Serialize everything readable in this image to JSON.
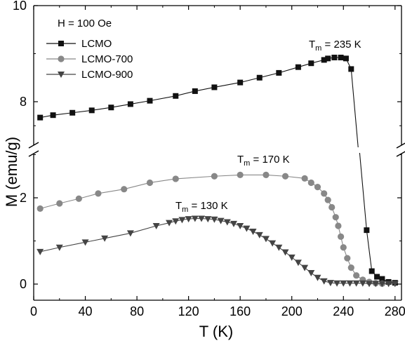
{
  "chart_data": {
    "type": "scatter",
    "xlabel": "T (K)",
    "ylabel": "M (emu/g)",
    "xlim": [
      0,
      285
    ],
    "xticks": [
      "0",
      "40",
      "80",
      "120",
      "160",
      "200",
      "240",
      "280"
    ],
    "yticks_lower": [
      "0",
      "2"
    ],
    "yticks_upper": [
      "8",
      "10"
    ],
    "ylim_lower": [
      -0.2,
      3.2
    ],
    "ylim_upper": [
      7.2,
      10
    ],
    "axis_break": true,
    "annotation_field": "H = 100 Oe",
    "legend_position": "top-left",
    "annotations": [
      {
        "label": "T",
        "sub": "m",
        "rest": " = 235 K",
        "x": 235,
        "y": 8.93,
        "series": "LCMO"
      },
      {
        "label": "T",
        "sub": "m",
        "rest": " = 170 K",
        "x": 170,
        "y": 2.55,
        "series": "LCMO-700"
      },
      {
        "label": "T",
        "sub": "m",
        "rest": " = 130 K",
        "x": 130,
        "y": 1.52,
        "series": "LCMO-900"
      }
    ],
    "series": [
      {
        "name": "LCMO",
        "marker": "square",
        "color": "#111111",
        "points": [
          [
            5,
            7.67
          ],
          [
            15,
            7.72
          ],
          [
            30,
            7.77
          ],
          [
            45,
            7.82
          ],
          [
            60,
            7.88
          ],
          [
            75,
            7.95
          ],
          [
            90,
            8.02
          ],
          [
            110,
            8.12
          ],
          [
            125,
            8.22
          ],
          [
            140,
            8.3
          ],
          [
            160,
            8.4
          ],
          [
            175,
            8.5
          ],
          [
            190,
            8.6
          ],
          [
            205,
            8.72
          ],
          [
            215,
            8.8
          ],
          [
            225,
            8.87
          ],
          [
            228,
            8.9
          ],
          [
            233,
            8.92
          ],
          [
            238,
            8.92
          ],
          [
            242,
            8.9
          ],
          [
            246,
            8.68
          ],
          [
            258,
            1.25
          ],
          [
            262,
            0.3
          ],
          [
            266,
            0.17
          ],
          [
            270,
            0.12
          ],
          [
            275,
            0.05
          ],
          [
            280,
            0.03
          ]
        ]
      },
      {
        "name": "LCMO-700",
        "marker": "circle",
        "color": "#888888",
        "points": [
          [
            5,
            1.75
          ],
          [
            20,
            1.87
          ],
          [
            35,
            1.98
          ],
          [
            50,
            2.1
          ],
          [
            70,
            2.2
          ],
          [
            90,
            2.35
          ],
          [
            110,
            2.44
          ],
          [
            140,
            2.5
          ],
          [
            160,
            2.53
          ],
          [
            180,
            2.53
          ],
          [
            195,
            2.5
          ],
          [
            210,
            2.45
          ],
          [
            215,
            2.35
          ],
          [
            220,
            2.25
          ],
          [
            225,
            2.1
          ],
          [
            228,
            1.95
          ],
          [
            231,
            1.78
          ],
          [
            234,
            1.55
          ],
          [
            236,
            1.35
          ],
          [
            238,
            1.1
          ],
          [
            240,
            0.85
          ],
          [
            243,
            0.6
          ],
          [
            246,
            0.38
          ],
          [
            250,
            0.2
          ],
          [
            255,
            0.1
          ],
          [
            260,
            0.05
          ],
          [
            265,
            0.02
          ],
          [
            270,
            0.01
          ]
        ]
      },
      {
        "name": "LCMO-900",
        "marker": "triangle-down",
        "color": "#444444",
        "points": [
          [
            5,
            0.75
          ],
          [
            20,
            0.85
          ],
          [
            40,
            0.97
          ],
          [
            55,
            1.06
          ],
          [
            75,
            1.18
          ],
          [
            95,
            1.35
          ],
          [
            105,
            1.42
          ],
          [
            110,
            1.46
          ],
          [
            115,
            1.49
          ],
          [
            120,
            1.51
          ],
          [
            125,
            1.52
          ],
          [
            130,
            1.52
          ],
          [
            135,
            1.51
          ],
          [
            140,
            1.5
          ],
          [
            145,
            1.47
          ],
          [
            150,
            1.44
          ],
          [
            155,
            1.4
          ],
          [
            160,
            1.35
          ],
          [
            165,
            1.29
          ],
          [
            170,
            1.22
          ],
          [
            175,
            1.14
          ],
          [
            180,
            1.05
          ],
          [
            185,
            0.95
          ],
          [
            190,
            0.85
          ],
          [
            195,
            0.74
          ],
          [
            200,
            0.62
          ],
          [
            205,
            0.5
          ],
          [
            210,
            0.38
          ],
          [
            215,
            0.26
          ],
          [
            220,
            0.15
          ],
          [
            225,
            0.07
          ],
          [
            230,
            0.03
          ],
          [
            235,
            0.02
          ],
          [
            240,
            0.02
          ],
          [
            245,
            0.02
          ],
          [
            250,
            0.02
          ],
          [
            255,
            0.02
          ],
          [
            260,
            0.01
          ],
          [
            265,
            0.01
          ],
          [
            270,
            0.01
          ],
          [
            275,
            0.01
          ],
          [
            280,
            0.01
          ]
        ]
      }
    ]
  }
}
